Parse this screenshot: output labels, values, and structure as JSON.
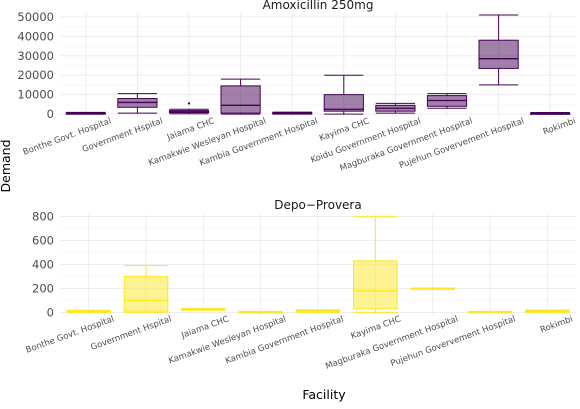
{
  "chart_data": {
    "type": "boxplot",
    "xlabel": "Facility",
    "ylabel": "Demand",
    "grid": true,
    "panels": [
      {
        "title": "Amoxicillin 250mg",
        "color": "#440154",
        "ylim": [
          -1500,
          52000
        ],
        "yticks": [
          0,
          10000,
          20000,
          30000,
          40000,
          50000
        ],
        "ytick_labels": [
          "0",
          "10000",
          "20000",
          "30000",
          "40000",
          "50000"
        ],
        "categories": [
          "Bonthe Govt. Hospital",
          "Government Hspital",
          "Jaiama  CHC",
          "Kamakwie Wesleyan Hospital",
          "Kambia Government Hospital",
          "Kayima CHC",
          "Koidu Government Hospital",
          "Magburaka Government Hospital",
          "Pujehun Govervement Hospital",
          "Rokimbi"
        ],
        "boxes": [
          {
            "min": 0,
            "q1": 0,
            "median": 300,
            "q3": 600,
            "max": 900
          },
          {
            "min": 500,
            "q1": 3500,
            "median": 6000,
            "q3": 8000,
            "max": 10500
          },
          {
            "min": 200,
            "q1": 800,
            "median": 1200,
            "q3": 1800,
            "max": 2500,
            "outliers": [
              5500
            ]
          },
          {
            "min": 0,
            "q1": 500,
            "median": 4500,
            "q3": 14500,
            "max": 18000
          },
          {
            "min": 0,
            "q1": 200,
            "median": 400,
            "q3": 700,
            "max": 1000
          },
          {
            "min": 0,
            "q1": 1500,
            "median": 2500,
            "q3": 10000,
            "max": 20000
          },
          {
            "min": 500,
            "q1": 1500,
            "median": 3000,
            "q3": 4500,
            "max": 5500
          },
          {
            "min": 3000,
            "q1": 4000,
            "median": 7000,
            "q3": 9500,
            "max": 10500
          },
          {
            "min": 15000,
            "q1": 23500,
            "median": 28500,
            "q3": 38000,
            "max": 51000
          },
          {
            "min": 0,
            "q1": 100,
            "median": 300,
            "q3": 500,
            "max": 800
          }
        ]
      },
      {
        "title": "Depo−Provera",
        "color": "#fde725",
        "ylim": [
          -30,
          820
        ],
        "yticks": [
          0,
          200,
          400,
          600,
          800
        ],
        "ytick_labels": [
          "0",
          "200",
          "400",
          "600",
          "800"
        ],
        "categories": [
          "Bonthe Govt. Hospital",
          "Government Hspital",
          "Jaiama  CHC",
          "Kamakwie Wesleyan Hospital",
          "Kambia Government Hospital",
          "Kayima CHC",
          "Magburaka Government Hospital",
          "Pujehun Govervement Hospital",
          "Rokimbi"
        ],
        "boxes": [
          {
            "min": 0,
            "q1": 2,
            "median": 8,
            "q3": 14,
            "max": 18
          },
          {
            "min": 0,
            "q1": 10,
            "median": 100,
            "q3": 300,
            "max": 390
          },
          {
            "min": 20,
            "q1": 22,
            "median": 25,
            "q3": 28,
            "max": 32
          },
          {
            "min": 0,
            "q1": 0,
            "median": 2,
            "q3": 5,
            "max": 8
          },
          {
            "min": 0,
            "q1": 3,
            "median": 12,
            "q3": 18,
            "max": 22
          },
          {
            "min": 0,
            "q1": 30,
            "median": 180,
            "q3": 430,
            "max": 800
          },
          {
            "min": 198,
            "q1": 198,
            "median": 200,
            "q3": 202,
            "max": 202
          },
          {
            "min": 0,
            "q1": 0,
            "median": 3,
            "q3": 6,
            "max": 8
          },
          {
            "min": 0,
            "q1": 5,
            "median": 12,
            "q3": 16,
            "max": 20
          }
        ]
      }
    ]
  }
}
